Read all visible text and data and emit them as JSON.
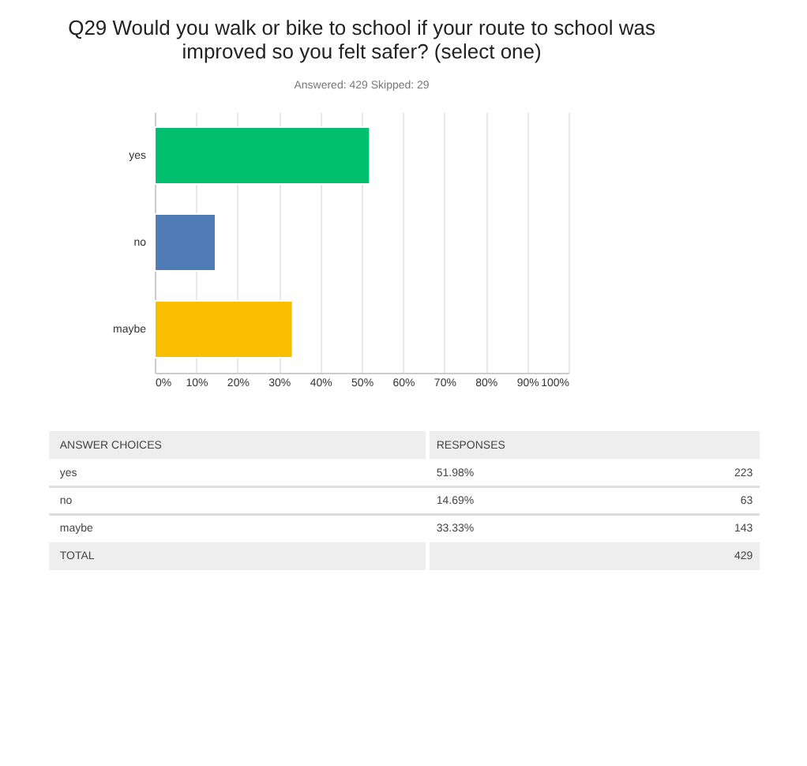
{
  "chart_data": {
    "type": "bar",
    "orientation": "horizontal",
    "title": "Q29 Would you walk or bike to school if your route to school was improved so you felt safer? (select one)",
    "subtitle": "Answered: 429    Skipped: 29",
    "categories": [
      "yes",
      "no",
      "maybe"
    ],
    "values": [
      51.98,
      14.69,
      33.33
    ],
    "colors": [
      "#00bf6f",
      "#507cb6",
      "#f9be00"
    ],
    "xlim": [
      0,
      100
    ],
    "xticks": [
      {
        "value": 0,
        "label": "0%"
      },
      {
        "value": 10,
        "label": "10%"
      },
      {
        "value": 20,
        "label": "20%"
      },
      {
        "value": 30,
        "label": "30%"
      },
      {
        "value": 40,
        "label": "40%"
      },
      {
        "value": 50,
        "label": "50%"
      },
      {
        "value": 60,
        "label": "60%"
      },
      {
        "value": 70,
        "label": "70%"
      },
      {
        "value": 80,
        "label": "80%"
      },
      {
        "value": 90,
        "label": "90%"
      },
      {
        "value": 100,
        "label": "100%"
      }
    ],
    "grid": "x",
    "annotations": [
      "ANSWER CHOICES",
      "RESPONSES",
      "51.98%",
      "14.69%",
      "33.33%",
      "223",
      "63",
      "143",
      "TOTAL",
      "429"
    ]
  }
}
